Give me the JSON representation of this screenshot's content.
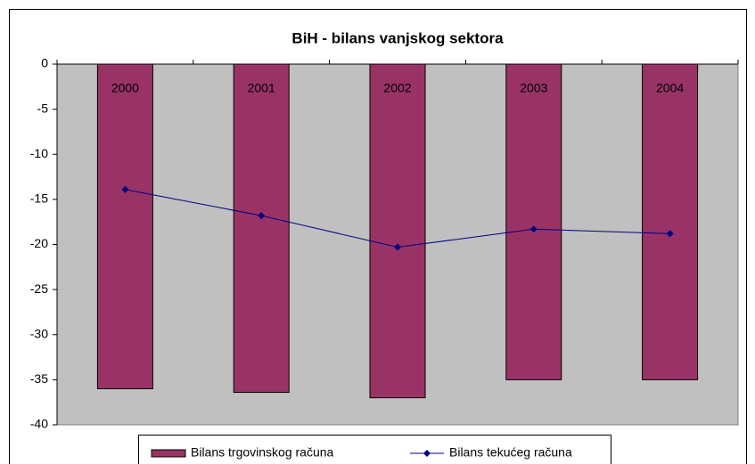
{
  "chart_data": {
    "type": "bar",
    "title": "BiH - bilans vanjskog sektora",
    "categories": [
      "2000",
      "2001",
      "2002",
      "2003",
      "2004"
    ],
    "series": [
      {
        "name": "Bilans trgovinskog računa",
        "type": "bar",
        "color": "#993366",
        "values": [
          -36,
          -36.4,
          -37,
          -35,
          -35
        ]
      },
      {
        "name": "Bilans tekućeg računa",
        "type": "line",
        "color": "#000080",
        "values": [
          -13.9,
          -16.8,
          -20.3,
          -18.3,
          -18.8
        ]
      }
    ],
    "ylim": [
      -40,
      0
    ],
    "yticks": [
      0,
      -5,
      -10,
      -15,
      -20,
      -25,
      -30,
      -35,
      -40
    ],
    "plot_background": "#c0c0c0",
    "legend": "bottom"
  }
}
